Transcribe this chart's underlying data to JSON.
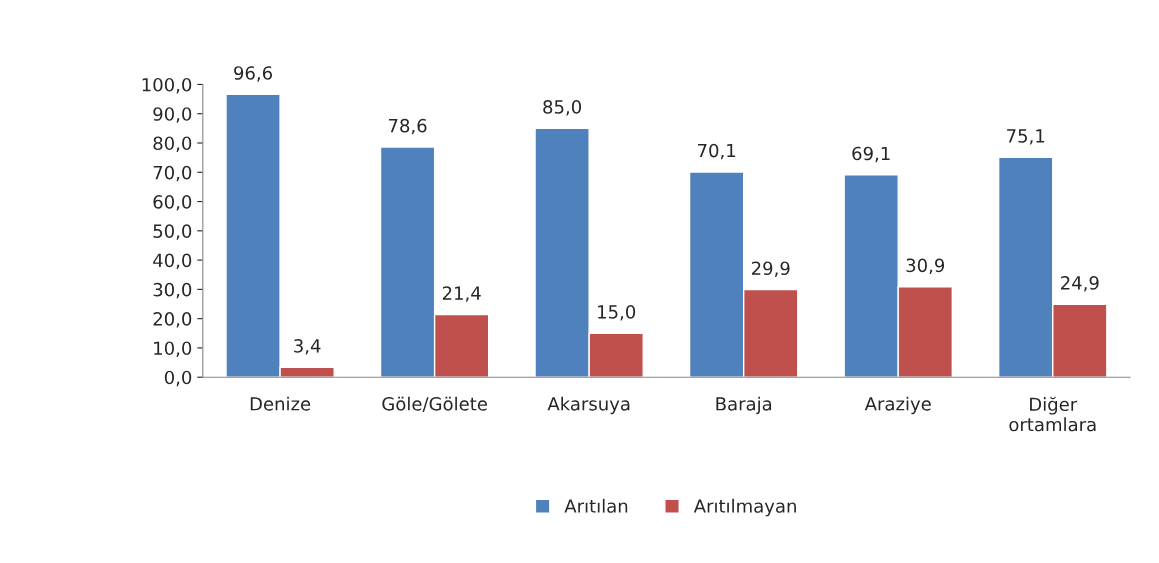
{
  "chart_data": {
    "type": "bar",
    "categories": [
      "Denize",
      "Göle/Gölete",
      "Akarsuya",
      "Baraja",
      "Araziye",
      "Diğer ortamlara"
    ],
    "series": [
      {
        "name": "Arıtılan",
        "color": "#4f81bd",
        "values": [
          96.6,
          78.6,
          85.0,
          70.1,
          69.1,
          75.1
        ],
        "value_labels": [
          "96,6",
          "78,6",
          "85,0",
          "70,1",
          "69,1",
          "75,1"
        ]
      },
      {
        "name": "Arıtılmayan",
        "color": "#c0504d",
        "values": [
          3.4,
          21.4,
          15.0,
          29.9,
          30.9,
          24.9
        ],
        "value_labels": [
          "3,4",
          "21,4",
          "15,0",
          "29,9",
          "30,9",
          "24,9"
        ]
      }
    ],
    "ylim": [
      0,
      100
    ],
    "yticks": [
      {
        "value": 0,
        "label": "0,0"
      },
      {
        "value": 10,
        "label": "10,0"
      },
      {
        "value": 20,
        "label": "20,0"
      },
      {
        "value": 30,
        "label": "30,0"
      },
      {
        "value": 40,
        "label": "40,0"
      },
      {
        "value": 50,
        "label": "50,0"
      },
      {
        "value": 60,
        "label": "60,0"
      },
      {
        "value": 70,
        "label": "70,0"
      },
      {
        "value": 80,
        "label": "80,0"
      },
      {
        "value": 90,
        "label": "90,0"
      },
      {
        "value": 100,
        "label": "100,0"
      }
    ],
    "grid": false,
    "legend": "bottom"
  }
}
